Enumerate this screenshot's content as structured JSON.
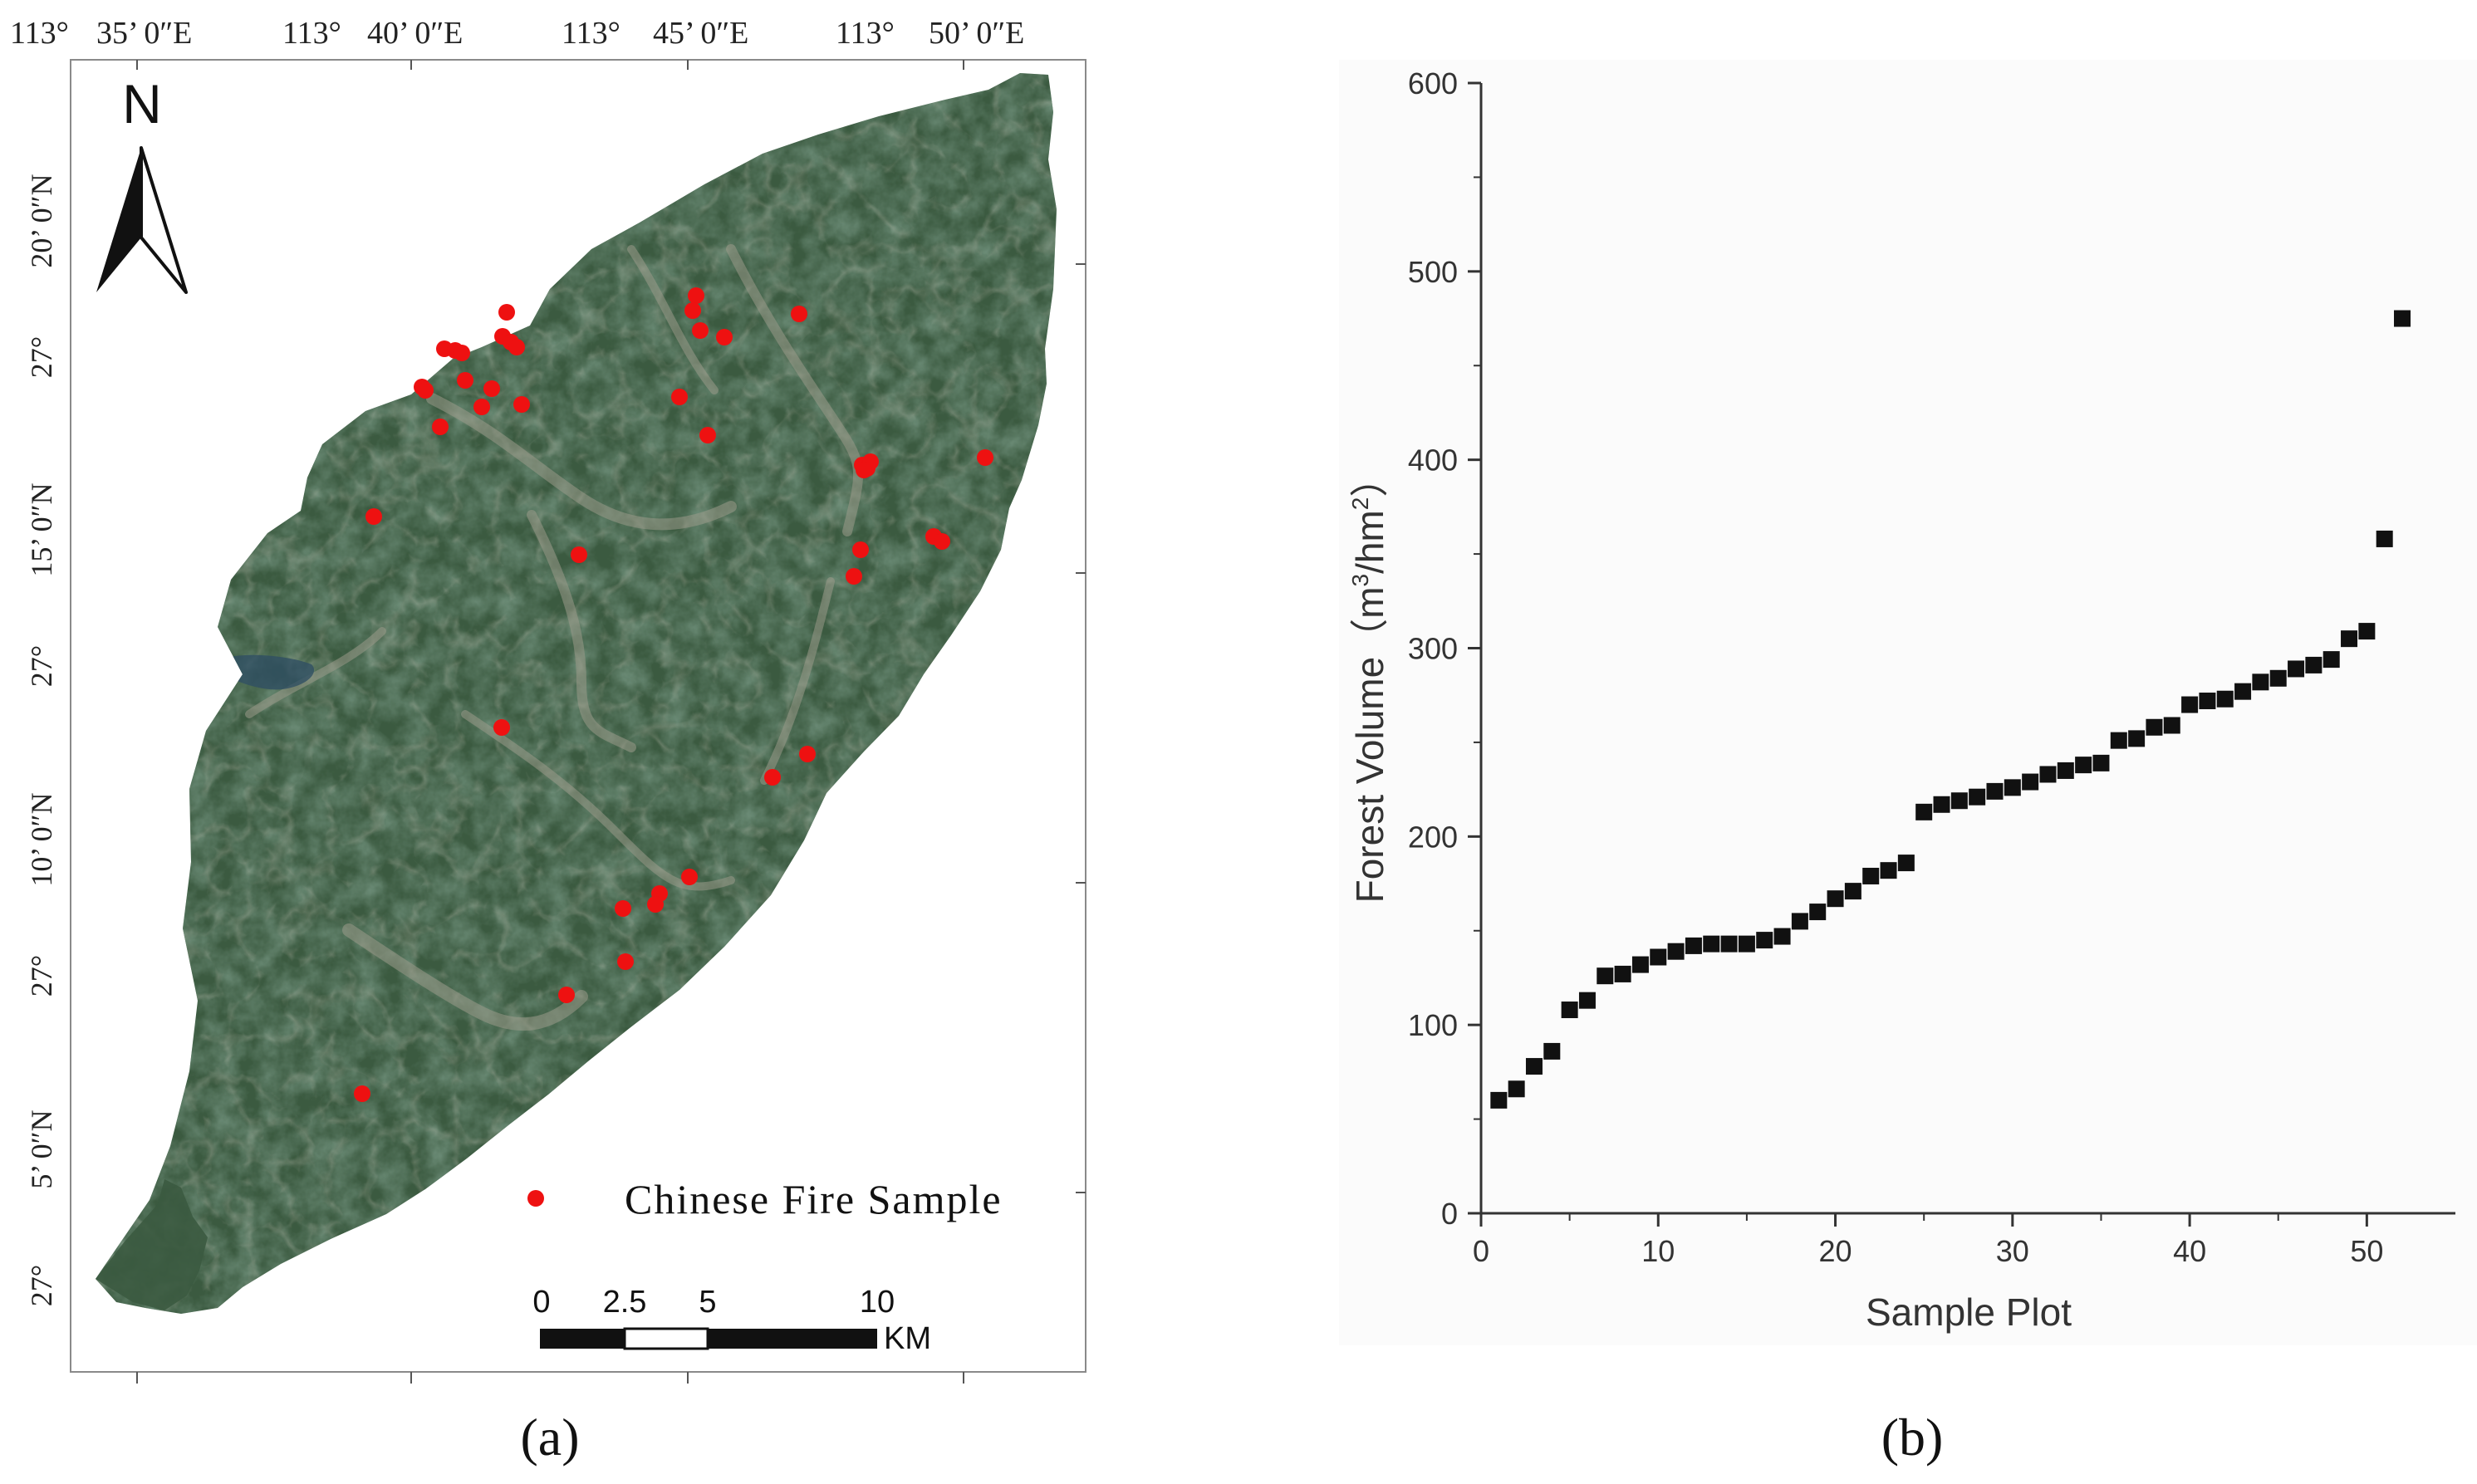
{
  "map": {
    "top_longitude_labels": [
      "113°",
      "35’ 0″E",
      "113°",
      "40’ 0″E",
      "113°",
      "45’ 0″E",
      "113°",
      "50’ 0″E"
    ],
    "left_latitude_labels": [
      {
        "deg": "27°",
        "min": "20’ 0″N"
      },
      {
        "deg": "27°",
        "min": "15’ 0″N"
      },
      {
        "deg": "27°",
        "min": "10’ 0″N"
      },
      {
        "deg": "27°",
        "min": "5’ 0″N"
      }
    ],
    "north_label": "N",
    "legend_label": "Chinese Fire Sample",
    "scale_labels": [
      "0",
      "2.5",
      "5",
      "10"
    ],
    "scale_unit": "KM",
    "fire_sample_color": "#ee1111",
    "terrain_color": "#2e4a35"
  },
  "panel_labels": {
    "a": "(a)",
    "b": "(b)"
  },
  "chart_data": {
    "type": "scatter",
    "xlabel": "Sample Plot",
    "ylabel_prefix": "Forest Volume（m",
    "ylabel_mid": "/hm",
    "ylabel_suffix": "）",
    "ylabel_sup": "3",
    "ylabel_sup2": "2",
    "xlim": [
      0,
      55
    ],
    "ylim": [
      0,
      600
    ],
    "x_ticks": [
      0,
      10,
      20,
      30,
      40,
      50
    ],
    "y_ticks": [
      0,
      100,
      200,
      300,
      400,
      500,
      600
    ],
    "marker_color": "#111111",
    "x": [
      1,
      2,
      3,
      4,
      5,
      6,
      7,
      8,
      9,
      10,
      11,
      12,
      13,
      14,
      15,
      16,
      17,
      18,
      19,
      20,
      21,
      22,
      23,
      24,
      25,
      26,
      27,
      28,
      29,
      30,
      31,
      32,
      33,
      34,
      35,
      36,
      37,
      38,
      39,
      40,
      41,
      42,
      43,
      44,
      45,
      46,
      47,
      48,
      49,
      50,
      51,
      52
    ],
    "y": [
      60,
      66,
      78,
      86,
      108,
      113,
      126,
      127,
      132,
      136,
      139,
      142,
      143,
      143,
      143,
      145,
      147,
      155,
      160,
      167,
      171,
      179,
      182,
      186,
      213,
      217,
      219,
      221,
      224,
      226,
      229,
      233,
      235,
      238,
      239,
      251,
      252,
      258,
      259,
      270,
      272,
      273,
      277,
      282,
      284,
      289,
      291,
      294,
      305,
      309,
      358,
      475
    ]
  }
}
